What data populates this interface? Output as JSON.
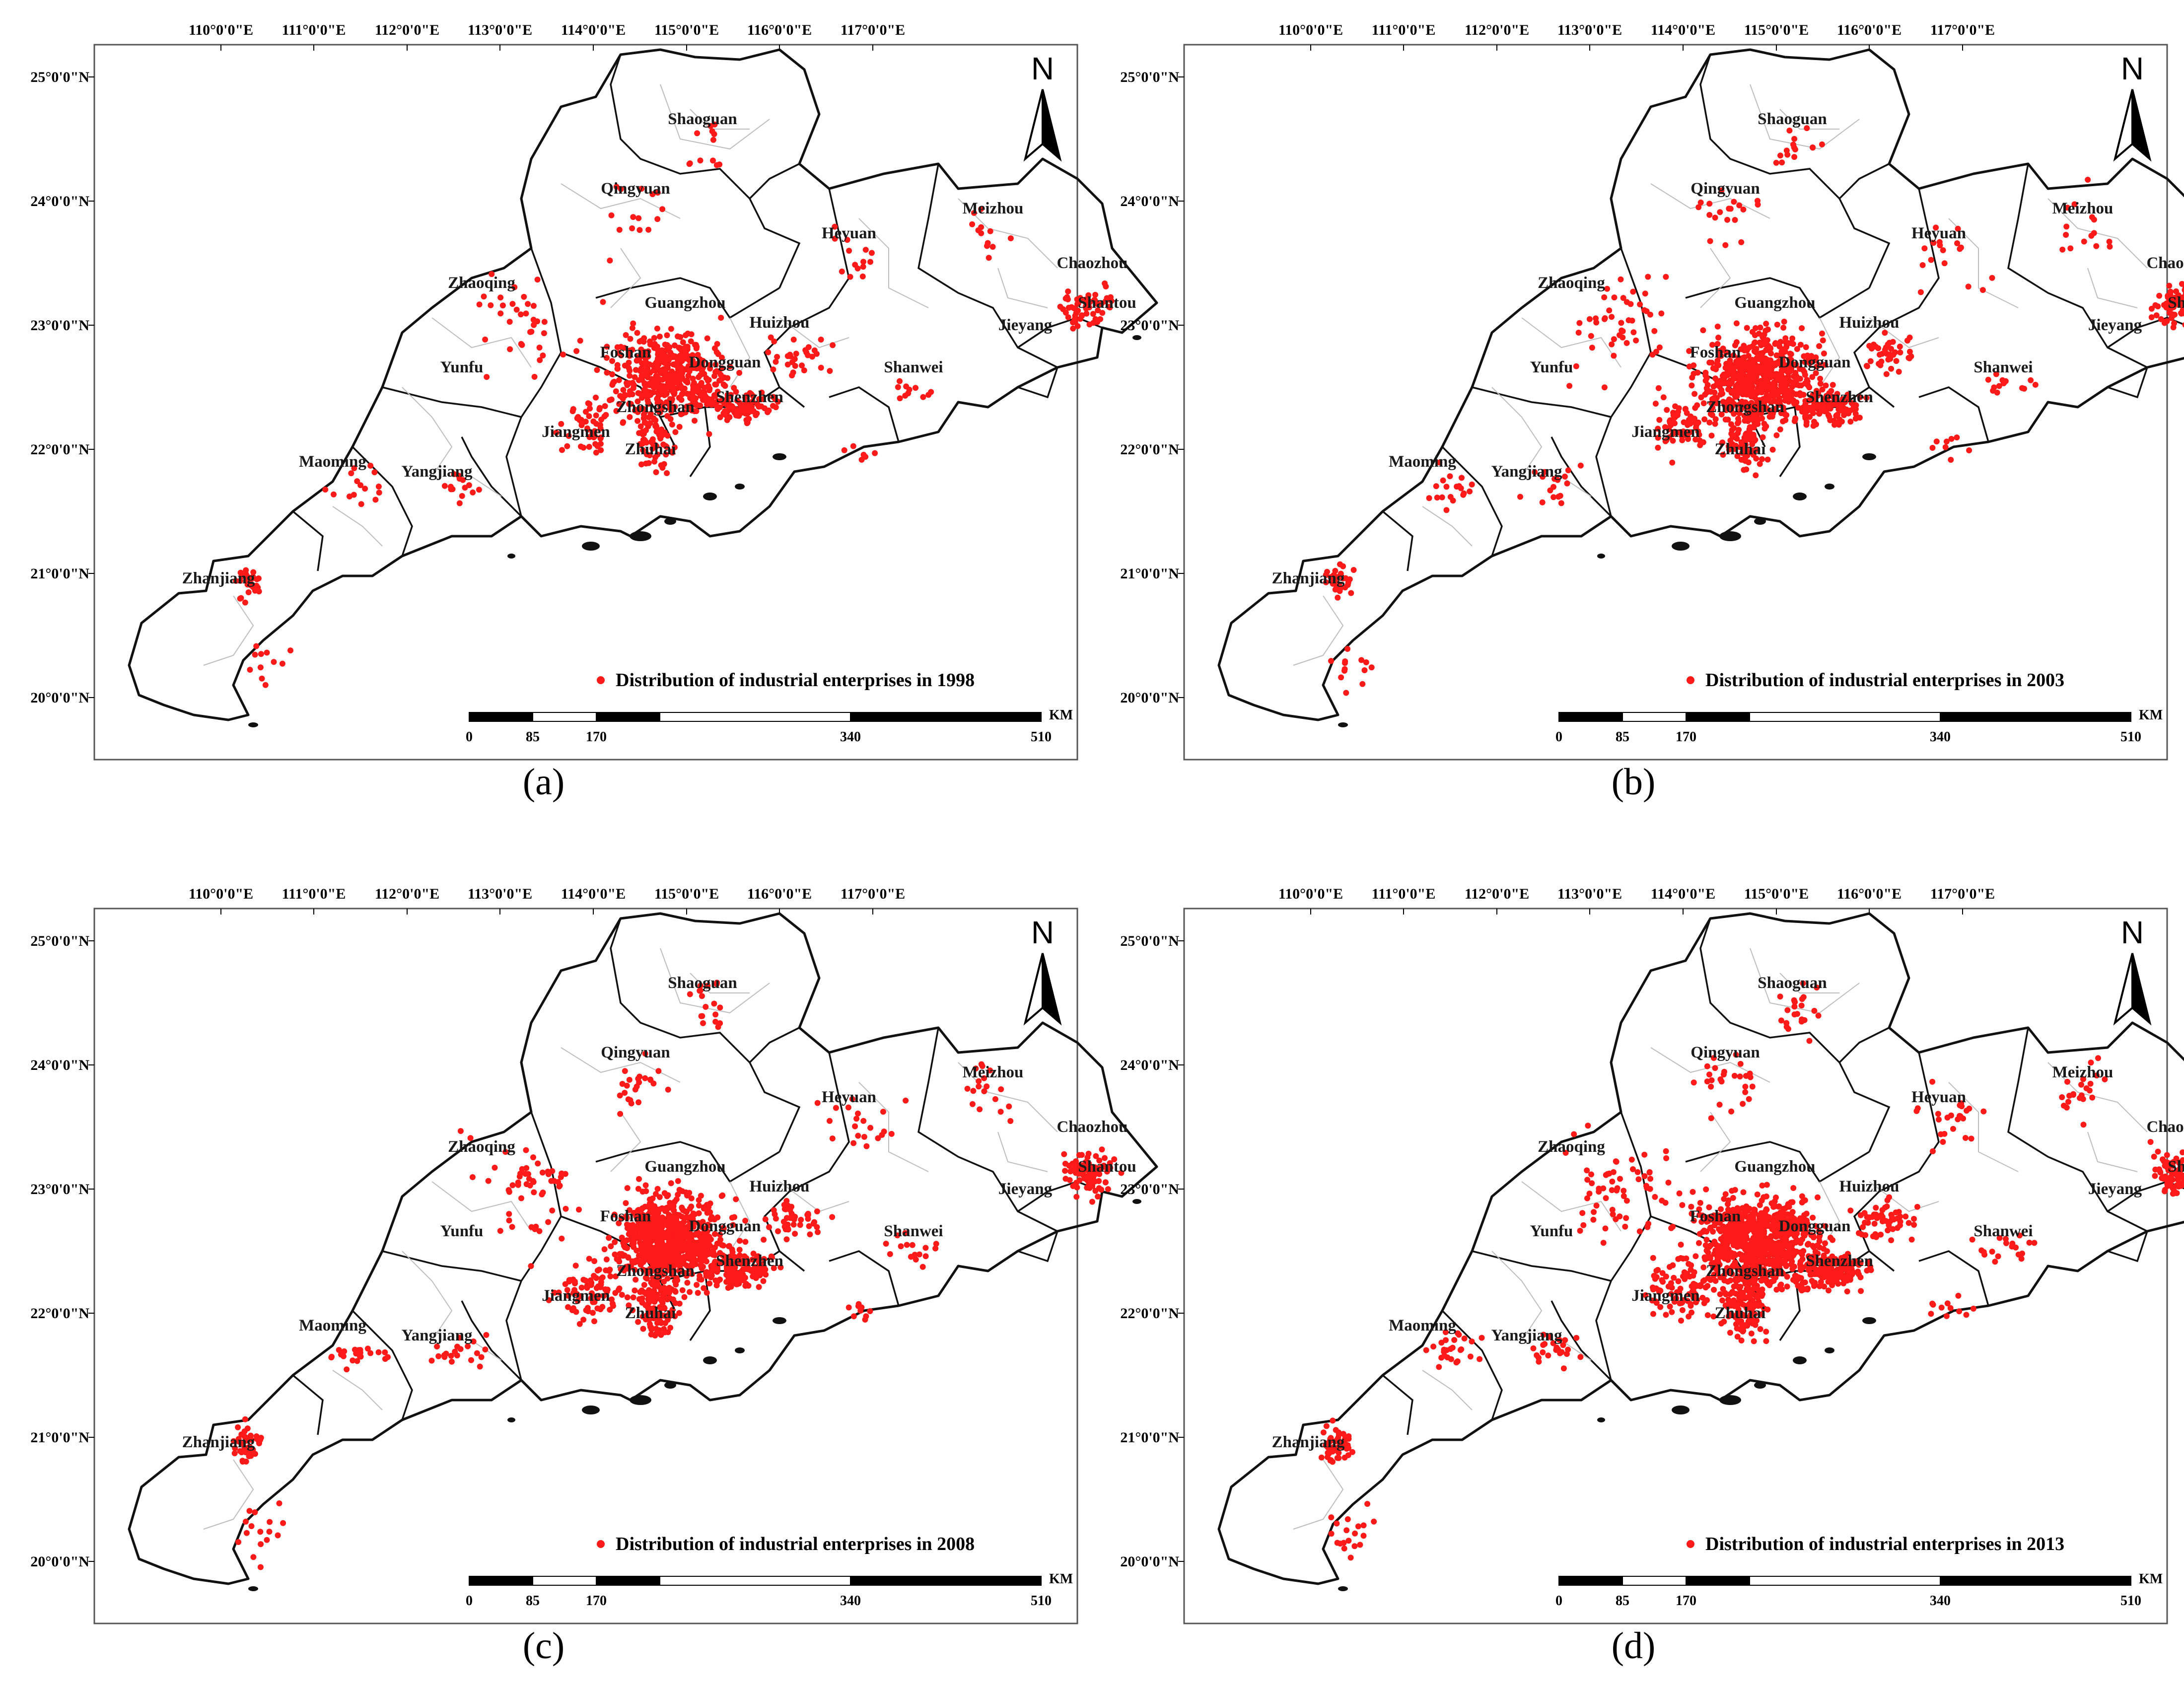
{
  "colors": {
    "point": "#ff1a1a",
    "boundary": "#111111",
    "county": "#bdbdbd",
    "frame": "#555555"
  },
  "common": {
    "north_label": "N",
    "lon_ticks": [
      "110°0'0\"E",
      "111°0'0\"E",
      "112°0'0\"E",
      "113°0'0\"E",
      "114°0'0\"E",
      "115°0'0\"E",
      "116°0'0\"E",
      "117°0'0\"E"
    ],
    "lat_ticks": [
      "25°0'0\"N",
      "24°0'0\"N",
      "23°0'0\"N",
      "22°0'0\"N",
      "21°0'0\"N",
      "20°0'0\"N"
    ],
    "scalebar_labels": [
      "0",
      "85",
      "170",
      "340",
      "510"
    ],
    "scalebar_unit": "KM",
    "cities": [
      "Shaoguan",
      "Qingyuan",
      "Meizhou",
      "Heyuan",
      "Chaozhou",
      "Zhaoqing",
      "Guangzhou",
      "Huizhou",
      "Shantou",
      "Jieyang",
      "Foshan",
      "Dongguan",
      "Yunfu",
      "Shanwei",
      "Shenzhen",
      "Zhongshan",
      "Jiangmen",
      "Zhuhai",
      "Maoming",
      "Yangjiang",
      "Zhanjiang"
    ]
  },
  "panels": [
    {
      "id": "a",
      "caption": "(a)",
      "legend": "Distribution of industrial enterprises in 1998",
      "year": 1998,
      "density": 0.75
    },
    {
      "id": "b",
      "caption": "(b)",
      "legend": "Distribution of industrial enterprises in 2003",
      "year": 2003,
      "density": 0.95
    },
    {
      "id": "c",
      "caption": "(c)",
      "legend": "Distribution of industrial enterprises in 2008",
      "year": 2008,
      "density": 1.15
    },
    {
      "id": "d",
      "caption": "(d)",
      "legend": "Distribution of industrial enterprises in 2013",
      "year": 2013,
      "density": 1.35
    }
  ]
}
